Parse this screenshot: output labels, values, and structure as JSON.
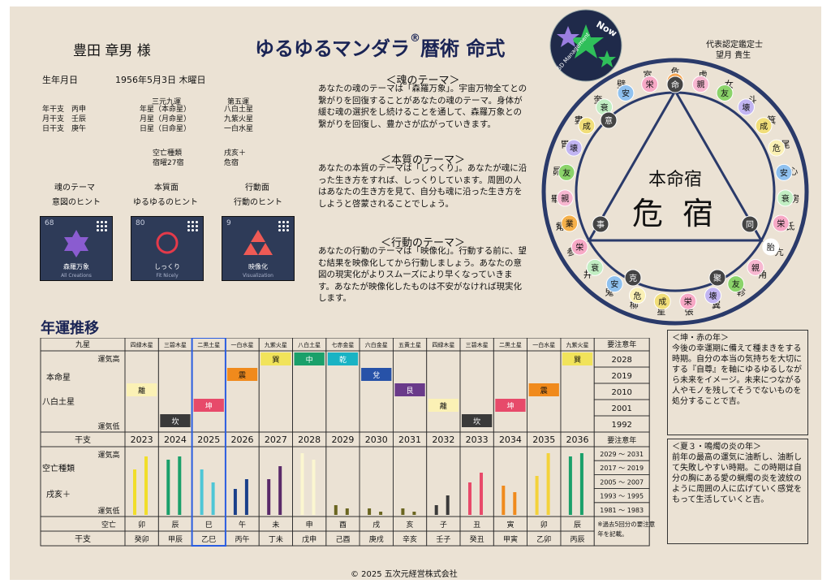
{
  "header": {
    "name": "豊田 章男 様",
    "title": "ゆるゆるマンダラ",
    "title_mark": "®",
    "title_tail": "暦術 命式",
    "certifier_role": "代表認定鑑定士",
    "certifier_name": "望月 貴生",
    "logo_text_top": "Now",
    "logo_text_bottom": "5D Management"
  },
  "birth": {
    "label": "生年月日",
    "value": "1956年5月3日 木曜日"
  },
  "kanshi": [
    {
      "label": "年干支",
      "value": "丙申"
    },
    {
      "label": "月干支",
      "value": "壬辰"
    },
    {
      "label": "日干支",
      "value": "庚午"
    }
  ],
  "kyusei": {
    "col1_head": "三元九運",
    "col2_head": "第五運",
    "rows": [
      {
        "k": "年星（本命星）",
        "v": "八白土星"
      },
      {
        "k": "月星（月命星）",
        "v": "九紫火星"
      },
      {
        "k": "日星（日命星）",
        "v": "一白水星"
      }
    ],
    "kubo_label": "空亡種類",
    "kubo_value": "戌亥＋",
    "shuku_label": "宿曜27宿",
    "shuku_value": "危宿"
  },
  "themes_header": {
    "cols": [
      "魂のテーマ",
      "本質面",
      "行動面"
    ],
    "hints": [
      "意図のヒント",
      "ゆるゆるのヒント",
      "行動のヒント"
    ]
  },
  "tiles": [
    {
      "num": "68",
      "jp": "森羅万象",
      "en": "All Creations",
      "icon": "hexagram-star-icon"
    },
    {
      "num": "80",
      "jp": "しっくり",
      "en": "Fit Nicely",
      "icon": "circle-ring-icon"
    },
    {
      "num": "9",
      "jp": "映像化",
      "en": "Visualization",
      "icon": "triforce-triangle-icon"
    }
  ],
  "sections": [
    {
      "head": "＜魂のテーマ＞",
      "body": "あなたの魂のテーマは「森羅万象」。宇宙万物全てとの繋がりを回復することがあなたの魂のテーマ。身体が緩む魂の選択をし続けることを通して、森羅万象との繋がりを回復し、豊かさが広がっていきます。"
    },
    {
      "head": "＜本質のテーマ＞",
      "body": "あなたの本質のテーマは「しっくり」。あなたが魂に沿った生き方をすれば、しっくりしています。周囲の人はあなたの生き方を見て、自分も魂に沿った生き方をしようと啓蒙されることでしょう。"
    },
    {
      "head": "＜行動のテーマ＞",
      "body": "あなたの行動のテーマは「映像化」。行動する前に、望む結果を映像化してから行動しましょう。あなたの意図の現実化がよりスムーズにより早くなっていきます。あなたが映像化したものは不安がなければ現実化します。"
    }
  ],
  "mandala": {
    "center_label": "本命宿",
    "center_value": "危 宿",
    "outer": [
      "危",
      "虚",
      "女",
      "斗",
      "箕",
      "尾",
      "心",
      "房",
      "氐",
      "亢",
      "角",
      "軫",
      "翼",
      "張",
      "星",
      "柳",
      "鬼",
      "井",
      "参",
      "觜",
      "畢",
      "昴",
      "胃",
      "婁",
      "奎",
      "壁",
      "室"
    ],
    "inner": [
      "命",
      "親",
      "友",
      "壊",
      "成",
      "危",
      "安",
      "衰",
      "栄",
      "胎",
      "親",
      "友",
      "壊",
      "栄",
      "成",
      "危",
      "安",
      "衰",
      "栄",
      "業",
      "親",
      "友",
      "壊",
      "成",
      "衰",
      "安",
      "栄"
    ],
    "special": [
      {
        "label": "命"
      },
      {
        "label": "意"
      },
      {
        "label": "同"
      },
      {
        "label": "聚"
      },
      {
        "label": "克"
      },
      {
        "label": "事"
      }
    ],
    "colors": {
      "命": "#f5a552",
      "親": "#f7b7d0",
      "友": "#8bd36a",
      "壊": "#c2b5f2",
      "成": "#f1de7a",
      "危": "#fbf1b5",
      "安": "#8fc1ef",
      "衰": "#c2eec3",
      "栄": "#f7a9c6",
      "胎": "#ffffff",
      "業": "#f5b04a"
    }
  },
  "nenun": {
    "title": "年運推移",
    "row_kyusei_label": "九星",
    "row_honmei_label": "本命星",
    "row_honmei_value": "八白土星",
    "label_high": "運気高",
    "label_low": "運気低",
    "kanshi_label": "干支",
    "kubo_label": "空亡種類",
    "kubo_value": "戌亥＋",
    "kubo_row_label": "空亡",
    "attention_head": "要注意年",
    "years": [
      "2023",
      "2024",
      "2025",
      "2026",
      "2027",
      "2028",
      "2029",
      "2030",
      "2031",
      "2032",
      "2033",
      "2034",
      "2035",
      "2036"
    ],
    "stars": [
      "四緑木星",
      "三碧木星",
      "二黒土星",
      "一白水星",
      "九紫火星",
      "八白土星",
      "七赤金星",
      "六白金星",
      "五黄土星",
      "四緑木星",
      "三碧木星",
      "二黒土星",
      "一白水星",
      "九紫火星"
    ],
    "trigrams": [
      "離",
      "坎",
      "坤",
      "震",
      "巽",
      "中",
      "乾",
      "兌",
      "艮",
      "離",
      "坎",
      "坤",
      "震",
      "巽"
    ],
    "trigram_level": [
      2,
      4,
      3,
      1,
      0,
      0,
      0,
      1,
      2,
      3,
      4,
      3,
      2,
      0
    ],
    "trigram_color": [
      "#fbf1b5",
      "#3a3a3a",
      "#e74a6a",
      "#f08a1c",
      "#f1e35a",
      "#1aa06a",
      "#19b3c4",
      "#2752a8",
      "#6a3a8a",
      "#fbf1b5",
      "#3a3a3a",
      "#e74a6a",
      "#f08a1c",
      "#f1e35a"
    ],
    "attention_years": [
      "2028",
      "2019",
      "2010",
      "2001",
      "1992"
    ],
    "attention_ranges": [
      "2029 ～ 2031",
      "2017 ～ 2019",
      "2005 ～ 2007",
      "1993 ～ 1995",
      "1981 ～ 1983"
    ],
    "kubo_branch": [
      "卯",
      "辰",
      "巳",
      "午",
      "未",
      "申",
      "酉",
      "戌",
      "亥",
      "子",
      "丑",
      "寅",
      "卯",
      "辰"
    ],
    "eto": [
      "癸卯",
      "甲辰",
      "乙巳",
      "丙午",
      "丁未",
      "戊申",
      "己酉",
      "庚戌",
      "辛亥",
      "壬子",
      "癸丑",
      "甲寅",
      "乙卯",
      "丙辰"
    ],
    "bar_colors": [
      "#f1de2a",
      "#1aa06a",
      "#4ec6d6",
      "#1a3f8a",
      "#5a2a6a",
      "#fbf6d0",
      "#6a6520",
      "#6a6520",
      "#6a6520",
      "#3a3a3a",
      "#e84a6a",
      "#f08a1c",
      "#f4d23a",
      "#1aa06a"
    ],
    "bar_heights": [
      [
        0.7,
        0.9
      ],
      [
        0.85,
        0.9
      ],
      [
        0.7,
        0.5
      ],
      [
        0.4,
        0.55
      ],
      [
        0.55,
        0.75
      ],
      [
        0.95,
        0.85
      ],
      [
        0.15,
        0.1
      ],
      [
        0.1,
        0.05
      ],
      [
        0.1,
        0.05
      ],
      [
        0.15,
        0.3
      ],
      [
        0.5,
        0.65
      ],
      [
        0.45,
        0.35
      ],
      [
        0.6,
        0.95
      ],
      [
        0.9,
        0.95
      ]
    ],
    "note": "※過去5回分の要注意年を記載。"
  },
  "side_notes": [
    {
      "head": "＜坤・赤の年＞",
      "body": "今後の幸運期に備えて種まきをする時期。自分の本当の気持ちを大切にする『自尊』を軸にゆるゆるしながら未来をイメージ。未来につながる人やモノを残してそうでないものを処分することで吉。"
    },
    {
      "head": "＜夏３・鳴燭の炎の年＞",
      "body": "前年の最高の運気に油断し、油断して失敗しやすい時期。この時期は自分の胸にある愛の蝋燭の炎を波紋のように周囲の人に広げていく感覚をもって生活していくと吉。"
    }
  ],
  "footer": "© 2025 五次元経営株式会社"
}
